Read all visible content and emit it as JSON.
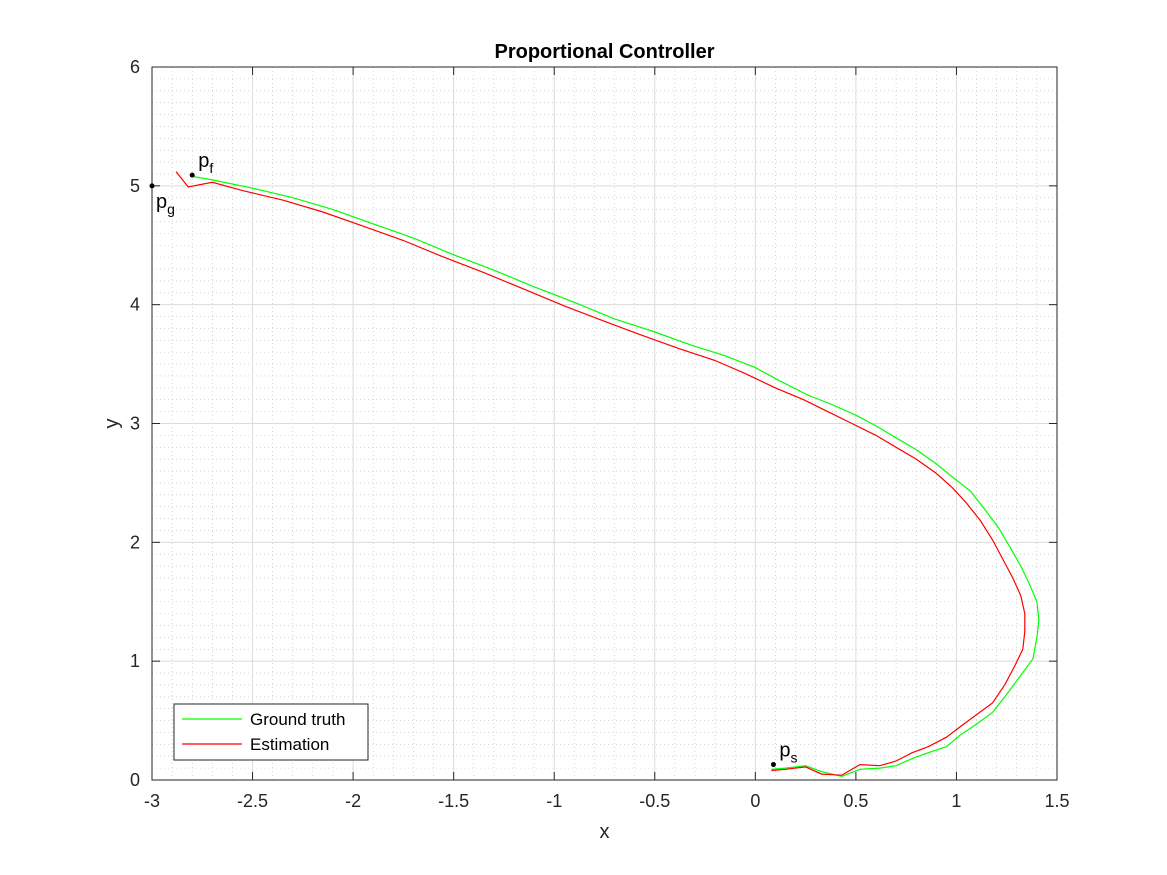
{
  "chart_data": {
    "type": "line",
    "title": "Proportional Controller",
    "xlabel": "x",
    "ylabel": "y",
    "xlim": [
      -3,
      1.5
    ],
    "ylim": [
      0,
      6
    ],
    "xticks": [
      -3,
      -2.5,
      -2,
      -1.5,
      -1,
      -0.5,
      0,
      0.5,
      1,
      1.5
    ],
    "xtick_labels": [
      "-3",
      "-2.5",
      "-2",
      "-1.5",
      "-1",
      "-0.5",
      "0",
      "0.5",
      "1",
      "1.5"
    ],
    "yticks": [
      0,
      1,
      2,
      3,
      4,
      5,
      6
    ],
    "ytick_labels": [
      "0",
      "1",
      "2",
      "3",
      "4",
      "5",
      "6"
    ],
    "grid": true,
    "minor_grid": true,
    "legend_position": "bottom-left",
    "series": [
      {
        "name": "Ground truth",
        "color": "#00ff00",
        "points": [
          [
            0.08,
            0.09
          ],
          [
            0.15,
            0.1
          ],
          [
            0.25,
            0.12
          ],
          [
            0.33,
            0.07
          ],
          [
            0.43,
            0.03
          ],
          [
            0.52,
            0.09
          ],
          [
            0.62,
            0.1
          ],
          [
            0.7,
            0.12
          ],
          [
            0.78,
            0.18
          ],
          [
            0.86,
            0.23
          ],
          [
            0.95,
            0.28
          ],
          [
            1.02,
            0.38
          ],
          [
            1.1,
            0.47
          ],
          [
            1.18,
            0.57
          ],
          [
            1.25,
            0.72
          ],
          [
            1.32,
            0.88
          ],
          [
            1.38,
            1.02
          ],
          [
            1.4,
            1.2
          ],
          [
            1.41,
            1.35
          ],
          [
            1.4,
            1.5
          ],
          [
            1.36,
            1.66
          ],
          [
            1.32,
            1.8
          ],
          [
            1.27,
            1.95
          ],
          [
            1.21,
            2.12
          ],
          [
            1.14,
            2.28
          ],
          [
            1.07,
            2.43
          ],
          [
            0.98,
            2.55
          ],
          [
            0.9,
            2.66
          ],
          [
            0.8,
            2.78
          ],
          [
            0.7,
            2.88
          ],
          [
            0.6,
            2.98
          ],
          [
            0.5,
            3.07
          ],
          [
            0.38,
            3.16
          ],
          [
            0.26,
            3.24
          ],
          [
            0.12,
            3.36
          ],
          [
            0.0,
            3.47
          ],
          [
            -0.15,
            3.57
          ],
          [
            -0.32,
            3.66
          ],
          [
            -0.5,
            3.77
          ],
          [
            -0.7,
            3.88
          ],
          [
            -0.9,
            4.02
          ],
          [
            -1.1,
            4.15
          ],
          [
            -1.3,
            4.29
          ],
          [
            -1.5,
            4.42
          ],
          [
            -1.7,
            4.56
          ],
          [
            -1.9,
            4.68
          ],
          [
            -2.1,
            4.8
          ],
          [
            -2.3,
            4.9
          ],
          [
            -2.5,
            4.98
          ],
          [
            -2.7,
            5.05
          ],
          [
            -2.8,
            5.08
          ]
        ]
      },
      {
        "name": "Estimation",
        "color": "#ff0000",
        "points": [
          [
            0.08,
            0.08
          ],
          [
            0.15,
            0.09
          ],
          [
            0.25,
            0.11
          ],
          [
            0.33,
            0.05
          ],
          [
            0.43,
            0.04
          ],
          [
            0.52,
            0.13
          ],
          [
            0.62,
            0.12
          ],
          [
            0.7,
            0.16
          ],
          [
            0.78,
            0.23
          ],
          [
            0.86,
            0.28
          ],
          [
            0.95,
            0.36
          ],
          [
            1.02,
            0.45
          ],
          [
            1.1,
            0.55
          ],
          [
            1.18,
            0.65
          ],
          [
            1.24,
            0.8
          ],
          [
            1.29,
            0.96
          ],
          [
            1.33,
            1.1
          ],
          [
            1.34,
            1.25
          ],
          [
            1.34,
            1.4
          ],
          [
            1.32,
            1.55
          ],
          [
            1.28,
            1.7
          ],
          [
            1.23,
            1.86
          ],
          [
            1.18,
            2.02
          ],
          [
            1.12,
            2.18
          ],
          [
            1.05,
            2.33
          ],
          [
            0.98,
            2.46
          ],
          [
            0.9,
            2.58
          ],
          [
            0.8,
            2.7
          ],
          [
            0.7,
            2.8
          ],
          [
            0.6,
            2.9
          ],
          [
            0.48,
            3.0
          ],
          [
            0.36,
            3.1
          ],
          [
            0.24,
            3.2
          ],
          [
            0.1,
            3.3
          ],
          [
            -0.05,
            3.42
          ],
          [
            -0.2,
            3.53
          ],
          [
            -0.38,
            3.63
          ],
          [
            -0.56,
            3.74
          ],
          [
            -0.75,
            3.86
          ],
          [
            -0.95,
            3.99
          ],
          [
            -1.15,
            4.13
          ],
          [
            -1.35,
            4.27
          ],
          [
            -1.55,
            4.4
          ],
          [
            -1.75,
            4.54
          ],
          [
            -1.95,
            4.66
          ],
          [
            -2.15,
            4.78
          ],
          [
            -2.35,
            4.88
          ],
          [
            -2.55,
            4.96
          ],
          [
            -2.7,
            5.03
          ],
          [
            -2.82,
            4.99
          ],
          [
            -2.88,
            5.12
          ]
        ]
      }
    ],
    "annotations": [
      {
        "label": "p",
        "sub": "s",
        "x": 0.09,
        "y": 0.13
      },
      {
        "label": "p",
        "sub": "f",
        "x": -2.8,
        "y": 5.09
      },
      {
        "label": "p",
        "sub": "g",
        "x": -3.0,
        "y": 5.0
      }
    ]
  }
}
